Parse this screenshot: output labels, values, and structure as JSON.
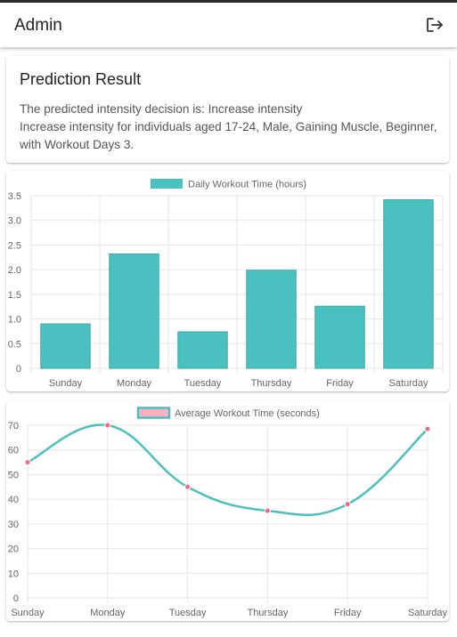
{
  "appbar": {
    "title": "Admin",
    "logout_icon": "logout-icon"
  },
  "result": {
    "title": "Prediction Result",
    "decision_line": "The predicted intensity decision is: Increase intensity",
    "detail_line": "Increase intensity for individuals aged 17-24, Male, Gaining Muscle, Beginner, with Workout Days 3."
  },
  "colors": {
    "bar_fill": "#4BC0C0",
    "line_color": "#4BC0C0",
    "point_color": "#FF6384",
    "legend_line_fill": "#FFB1C1"
  },
  "chart_data": [
    {
      "type": "bar",
      "title": "",
      "legend": [
        "Daily Workout Time (hours)"
      ],
      "categories": [
        "Sunday",
        "Monday",
        "Tuesday",
        "Thursday",
        "Friday",
        "Saturday"
      ],
      "series": [
        {
          "name": "Daily Workout Time (hours)",
          "values": [
            0.9,
            2.32,
            0.74,
            1.99,
            1.26,
            3.42
          ]
        }
      ],
      "ylim": [
        0,
        3.5
      ],
      "yticks": [
        "0",
        "0.5",
        "1.0",
        "1.5",
        "2.0",
        "2.5",
        "3.0",
        "3.5"
      ],
      "grid": true,
      "legend_position": "top"
    },
    {
      "type": "line",
      "title": "",
      "legend": [
        "Average Workout Time (seconds)"
      ],
      "categories": [
        "Sunday",
        "Monday",
        "Tuesday",
        "Thursday",
        "Friday",
        "Saturday"
      ],
      "series": [
        {
          "name": "Average Workout Time (seconds)",
          "values": [
            55,
            70,
            45,
            35.3,
            38,
            68.5
          ]
        }
      ],
      "ylim": [
        0,
        70
      ],
      "yticks": [
        "0",
        "10",
        "20",
        "30",
        "40",
        "50",
        "60",
        "70"
      ],
      "grid": true,
      "legend_position": "top"
    }
  ]
}
